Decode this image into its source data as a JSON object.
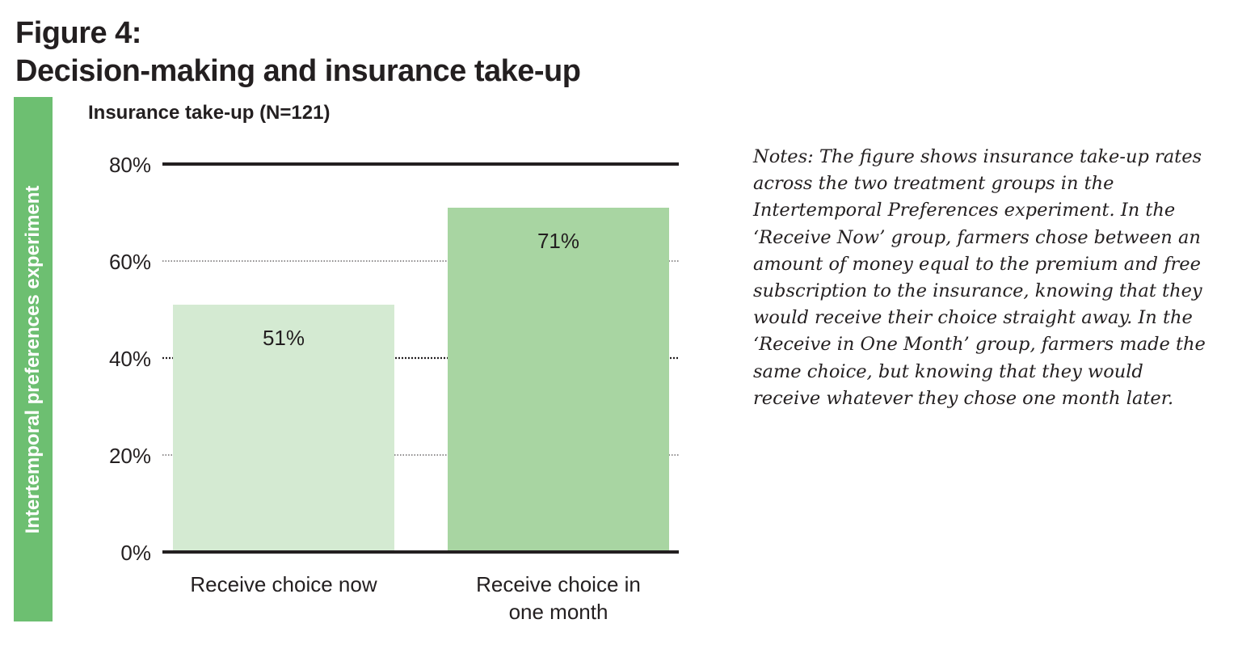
{
  "figure": {
    "title_line1": "Figure 4:",
    "title_line2": "Decision-making and insurance take-up"
  },
  "side_label": "Intertemporal preferences experiment",
  "notes": "Notes: The figure shows insurance take-up rates across the two treatment groups in the Intertemporal Preferences experiment. In the ‘Receive Now’ group, farmers chose between an amount of money equal to the premium and free subscription to the insurance, knowing that they would receive their choice straight away. In the ‘Receive in One Month’ group, farmers made the same choice, but knowing that they would receive whatever they chose one month later.",
  "chart_data": {
    "type": "bar",
    "title": "Insurance take-up (N=121)",
    "categories": [
      [
        "Receive choice now"
      ],
      [
        "Receive choice in",
        "one month"
      ]
    ],
    "values": [
      51,
      71
    ],
    "value_labels": [
      "51%",
      "71%"
    ],
    "ylim": [
      0,
      80
    ],
    "yticks": [
      0,
      20,
      40,
      60,
      80
    ],
    "ytick_labels": [
      "0%",
      "20%",
      "40%",
      "60%",
      "80%"
    ],
    "grid": true,
    "colors": {
      "bars": [
        "#d4ead2",
        "#a8d5a2"
      ],
      "side_band": "#6dbf71",
      "text": "#231f20"
    }
  }
}
